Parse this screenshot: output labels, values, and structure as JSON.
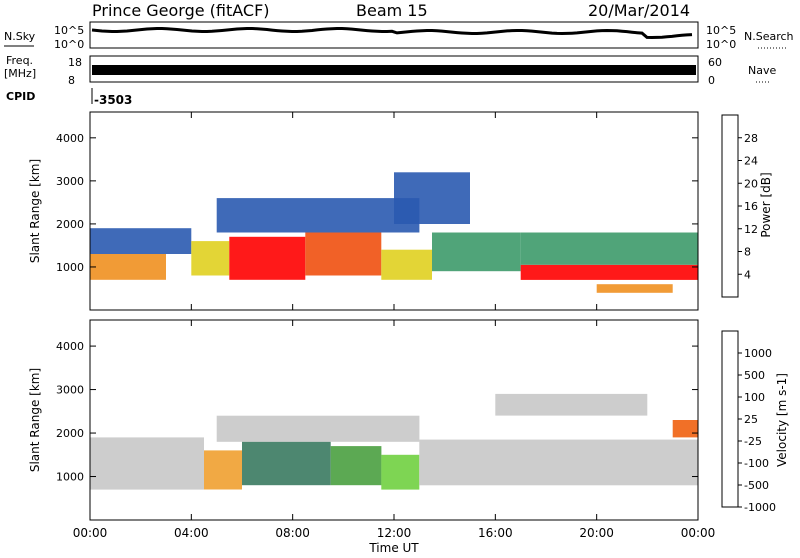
{
  "header": {
    "station": "Prince George (fitACF)",
    "beam": "Beam 15",
    "date": "20/Mar/2014"
  },
  "strips": {
    "nsky_label": "N.Sky",
    "nsearch_label": "N.Search",
    "noise_ticks": [
      "10^5",
      "10^0"
    ],
    "freq_label": "Freq.",
    "freq_unit": "[MHz]",
    "freq_ticks": [
      "18",
      "8"
    ],
    "nave_label": "Nave",
    "nave_ticks": [
      "60",
      "0"
    ],
    "cpid_label": "CPID",
    "cpid_value": "-3503"
  },
  "colors": {
    "power_scale": [
      "#1010e0",
      "#2a5ab0",
      "#3d9a6a",
      "#5ac84a",
      "#e0d020",
      "#f09020",
      "#f05010",
      "#ff0000"
    ],
    "velocity_scale": [
      "#2a40c0",
      "#3a7a60",
      "#4aa040",
      "#70d040",
      "#c8c8c8",
      "#f0a030",
      "#f06010",
      "#ff0000"
    ]
  },
  "chart_data": [
    {
      "type": "heatmap",
      "title": "Power",
      "xlabel": "",
      "ylabel": "Slant Range [km]",
      "x_ticks": [
        "00:00",
        "04:00",
        "08:00",
        "12:00",
        "16:00",
        "20:00",
        "00:00"
      ],
      "y_ticks": [
        "1000",
        "2000",
        "3000",
        "4000"
      ],
      "ylim": [
        0,
        4600
      ],
      "colorbar_label": "Power [dB]",
      "colorbar_ticks": [
        "4",
        "8",
        "12",
        "16",
        "20",
        "24",
        "28"
      ],
      "regions": [
        {
          "t0": 0.0,
          "t1": 3.0,
          "r0": 700,
          "r1": 1300,
          "level": 5
        },
        {
          "t0": 0.0,
          "t1": 4.0,
          "r0": 1300,
          "r1": 1900,
          "level": 1
        },
        {
          "t0": 4.0,
          "t1": 5.5,
          "r0": 800,
          "r1": 1600,
          "level": 4
        },
        {
          "t0": 5.5,
          "t1": 8.5,
          "r0": 700,
          "r1": 1700,
          "level": 7
        },
        {
          "t0": 8.5,
          "t1": 11.5,
          "r0": 800,
          "r1": 1800,
          "level": 6
        },
        {
          "t0": 11.5,
          "t1": 13.5,
          "r0": 700,
          "r1": 1400,
          "level": 4
        },
        {
          "t0": 13.5,
          "t1": 17.0,
          "r0": 900,
          "r1": 1800,
          "level": 2
        },
        {
          "t0": 17.0,
          "t1": 24.0,
          "r0": 700,
          "r1": 1050,
          "level": 7
        },
        {
          "t0": 17.0,
          "t1": 24.0,
          "r0": 1050,
          "r1": 1800,
          "level": 2
        },
        {
          "t0": 5.0,
          "t1": 13.0,
          "r0": 1800,
          "r1": 2600,
          "level": 1
        },
        {
          "t0": 12.0,
          "t1": 15.0,
          "r0": 2000,
          "r1": 3200,
          "level": 1
        },
        {
          "t0": 20.0,
          "t1": 23.0,
          "r0": 400,
          "r1": 600,
          "level": 5
        }
      ]
    },
    {
      "type": "heatmap",
      "title": "Velocity",
      "xlabel": "Time UT",
      "ylabel": "Slant Range [km]",
      "x_ticks": [
        "00:00",
        "04:00",
        "08:00",
        "12:00",
        "16:00",
        "20:00",
        "00:00"
      ],
      "y_ticks": [
        "1000",
        "2000",
        "3000",
        "4000"
      ],
      "ylim": [
        0,
        4600
      ],
      "colorbar_label": "Velocity [m s-1]",
      "colorbar_ticks": [
        "1000",
        "500",
        "100",
        "25",
        "-25",
        "-100",
        "-500",
        "-1000"
      ],
      "regions": [
        {
          "t0": 0.0,
          "t1": 4.5,
          "r0": 700,
          "r1": 1900,
          "level": 4
        },
        {
          "t0": 4.5,
          "t1": 6.0,
          "r0": 700,
          "r1": 1600,
          "level": 5
        },
        {
          "t0": 6.0,
          "t1": 9.5,
          "r0": 800,
          "r1": 1800,
          "level": 1
        },
        {
          "t0": 9.5,
          "t1": 11.5,
          "r0": 800,
          "r1": 1700,
          "level": 2
        },
        {
          "t0": 11.5,
          "t1": 13.0,
          "r0": 700,
          "r1": 1500,
          "level": 3
        },
        {
          "t0": 13.0,
          "t1": 24.0,
          "r0": 800,
          "r1": 1850,
          "level": 4
        },
        {
          "t0": 5.0,
          "t1": 13.0,
          "r0": 1800,
          "r1": 2400,
          "level": 4
        },
        {
          "t0": 16.0,
          "t1": 22.0,
          "r0": 2400,
          "r1": 2900,
          "level": 4
        },
        {
          "t0": 23.0,
          "t1": 24.0,
          "r0": 1900,
          "r1": 2300,
          "level": 6
        }
      ]
    }
  ]
}
